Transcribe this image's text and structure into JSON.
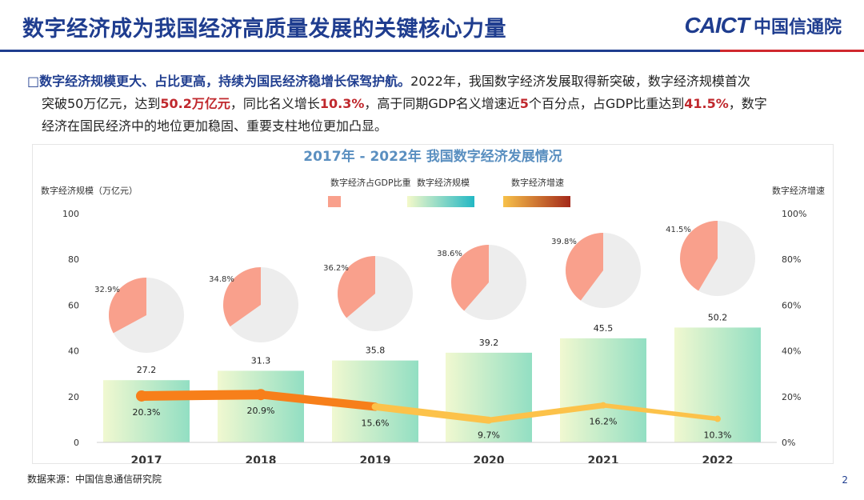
{
  "header": {
    "title": "数字经济成为我国经济高质量发展的关键核心力量",
    "logo_en": "CAICT",
    "logo_cn": "中国信通院"
  },
  "para": {
    "bullet": "□",
    "lead": "数字经济规模更大、占比更高，持续为国民经济稳增长保驾护航。",
    "t1": "2022年，我国数字经济发展取得新突破，数字经济规模首次",
    "t2": "突破50万亿元，达到",
    "h1": "50.2万亿元",
    "t3": "，同比名义增长",
    "h2": "10.3%",
    "t4": "，高于同期GDP名义增速近",
    "h3": "5",
    "t5": "个百分点，占GDP比重达到",
    "h4": "41.5%",
    "t6": "，数字",
    "t7": "经济在国民经济中的地位更加稳固、重要支柱地位更加凸显。"
  },
  "chart_data": {
    "type": "bar+line+pie",
    "title": "2017年 - 2022年 我国数字经济发展情况",
    "ylabel_left": "数字经济规模（万亿元）",
    "ylabel_right": "数字经济增速",
    "left_ticks": [
      "100",
      "80",
      "60",
      "40",
      "20",
      "0"
    ],
    "right_ticks": [
      "100%",
      "80%",
      "60%",
      "40%",
      "20%",
      "0%"
    ],
    "ylim_left": [
      0,
      100
    ],
    "ylim_right": [
      0,
      100
    ],
    "categories": [
      "2017",
      "2018",
      "2019",
      "2020",
      "2021",
      "2022"
    ],
    "legend": [
      "数字经济占GDP比重",
      "数字经济规模",
      "数字经济增速"
    ],
    "series": [
      {
        "name": "数字经济规模",
        "type": "bar",
        "values": [
          27.2,
          31.3,
          35.8,
          39.2,
          45.5,
          50.2
        ],
        "labels": [
          "27.2",
          "31.3",
          "35.8",
          "39.2",
          "45.5",
          "50.2"
        ]
      },
      {
        "name": "数字经济增速",
        "type": "line",
        "values": [
          20.3,
          20.9,
          15.6,
          9.7,
          16.2,
          10.3
        ],
        "labels": [
          "20.3%",
          "20.9%",
          "15.6%",
          "9.7%",
          "16.2%",
          "10.3%"
        ]
      },
      {
        "name": "数字经济占GDP比重",
        "type": "pie",
        "values": [
          32.9,
          34.8,
          36.2,
          38.6,
          39.8,
          41.5
        ],
        "labels": [
          "32.9%",
          "34.8%",
          "36.2%",
          "38.6%",
          "39.8%",
          "41.5%"
        ]
      }
    ],
    "colors": {
      "pie_share": "#f9a08c",
      "pie_rest": "#ededed",
      "bar_low": "#eef7c8",
      "bar_high": "#7fd9b8",
      "line_start": "#f77f1a",
      "line_end": "#fcc24a",
      "legend_bar_a": "#f4f9c9",
      "legend_bar_b": "#23b8c4",
      "legend_line_a": "#f7c14a",
      "legend_line_b": "#a4291a"
    }
  },
  "footer": {
    "source": "数据来源：中国信息通信研究院",
    "page": "2"
  }
}
